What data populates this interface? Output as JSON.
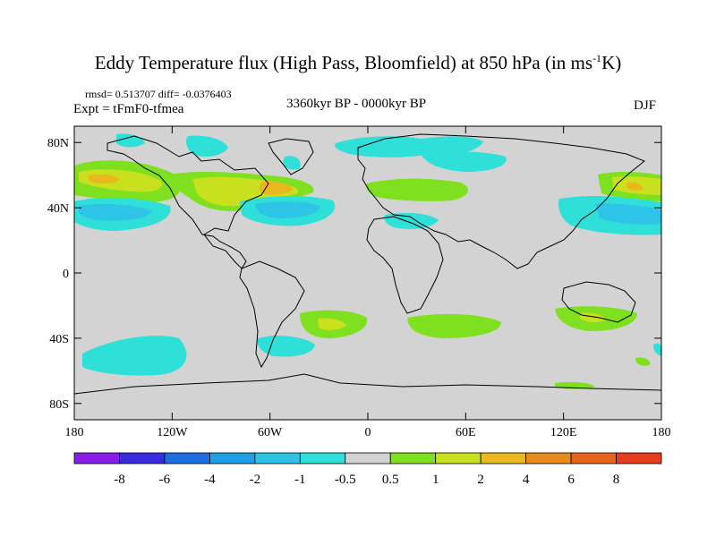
{
  "title": {
    "main": "Eddy Temperature flux (High Pass, Bloomfield) at 850 hPa (in ms",
    "sup": "-1",
    "tail": "K)"
  },
  "stats_line": "rmsd= 0.513707 diff= -0.0376403",
  "experiment": "Expt = tFmF0-tfmea",
  "period": "3360kyr BP - 0000kyr BP",
  "season": "DJF",
  "axes": {
    "lat_ticks": [
      {
        "value": 80,
        "label": "80N"
      },
      {
        "value": 40,
        "label": "40N"
      },
      {
        "value": 0,
        "label": "0"
      },
      {
        "value": -40,
        "label": "40S"
      },
      {
        "value": -80,
        "label": "80S"
      }
    ],
    "lon_ticks": [
      {
        "value": -180,
        "label": "180"
      },
      {
        "value": -120,
        "label": "120W"
      },
      {
        "value": -60,
        "label": "60W"
      },
      {
        "value": 0,
        "label": "0"
      },
      {
        "value": 60,
        "label": "60E"
      },
      {
        "value": 120,
        "label": "120E"
      },
      {
        "value": 180,
        "label": "180"
      }
    ],
    "lon_range": [
      -180,
      180
    ],
    "lat_range": [
      -90,
      90
    ]
  },
  "colorbar": {
    "levels": [
      "-8",
      "-6",
      "-4",
      "-2",
      "-1",
      "-0.5",
      "0.5",
      "1",
      "2",
      "4",
      "6",
      "8"
    ],
    "colors": [
      "#8a1ee6",
      "#3b2ce0",
      "#1f6ee0",
      "#1fa0e6",
      "#2ec4e8",
      "#2ee0d8",
      "#d3d3d3",
      "#7ee01e",
      "#c8e01e",
      "#e8b81e",
      "#e88c1e",
      "#e8641e",
      "#e83c1e"
    ]
  },
  "map_colors": {
    "background": "#d3d3d3",
    "coast": "#000000"
  }
}
